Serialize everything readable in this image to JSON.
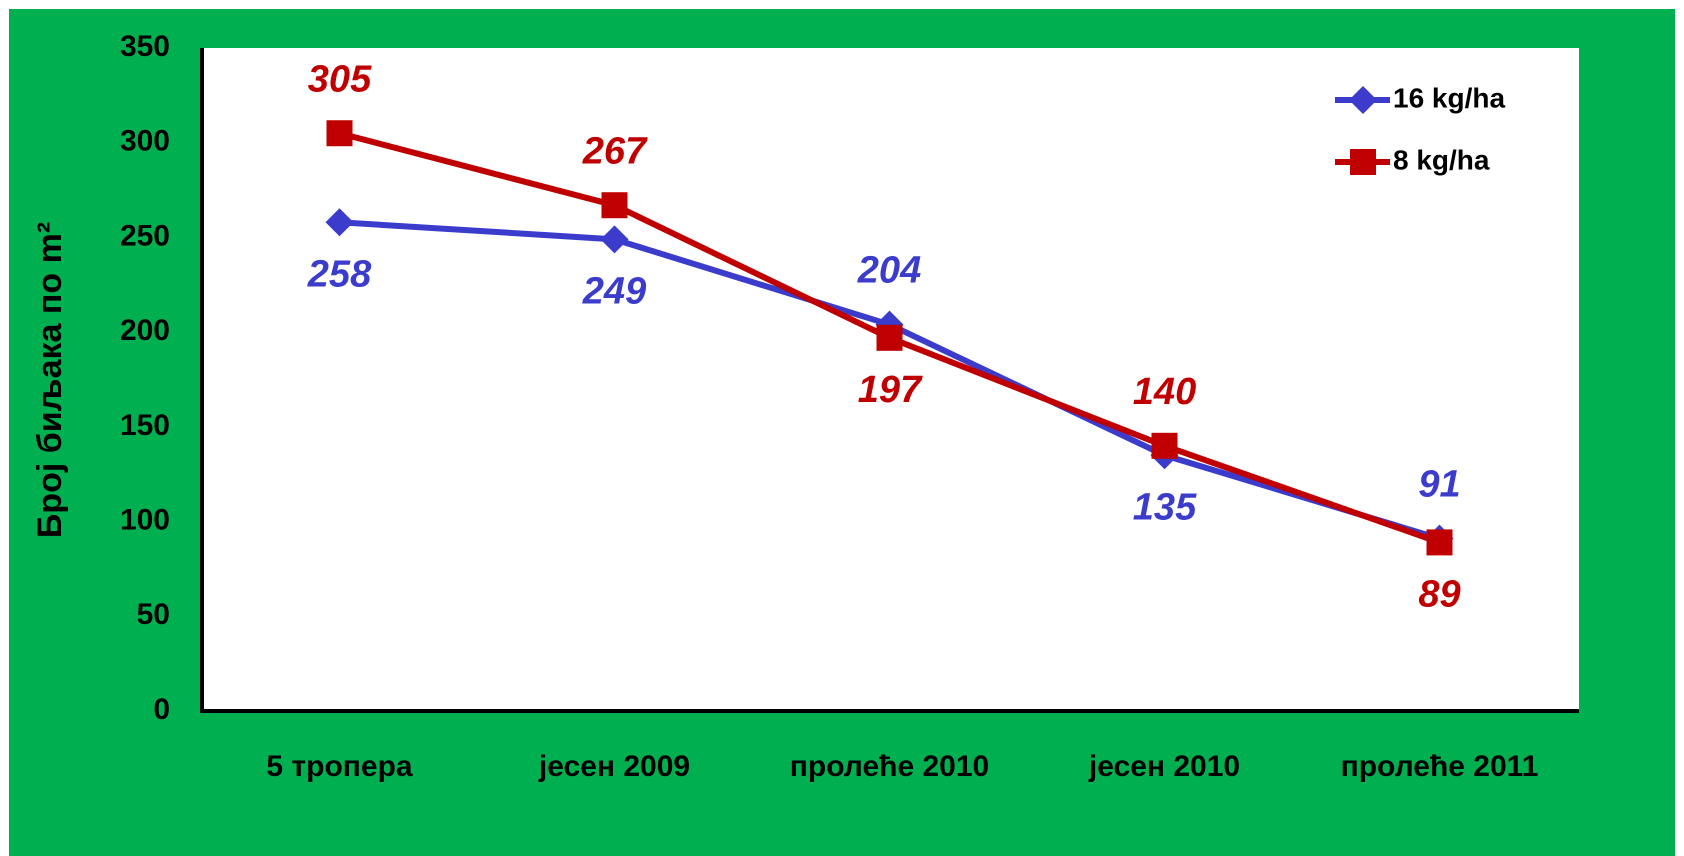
{
  "chart_data": {
    "type": "line",
    "y_label": "Број биљака по m²",
    "categories": [
      "5 тропера",
      "јесен 2009",
      "пролеће 2010",
      "јесен 2010",
      "пролеће 2011"
    ],
    "series": [
      {
        "name": "16 kg/ha",
        "color": "#3b3bcc",
        "marker": "diamond",
        "values": [
          258,
          249,
          204,
          135,
          91
        ]
      },
      {
        "name": "8 kg/ha",
        "color": "#c00000",
        "marker": "square",
        "values": [
          305,
          267,
          197,
          140,
          89
        ]
      }
    ],
    "ylim": [
      0,
      350
    ],
    "yticks": [
      0,
      50,
      100,
      150,
      200,
      250,
      300,
      350
    ],
    "grid": false,
    "legend": "upper right"
  }
}
